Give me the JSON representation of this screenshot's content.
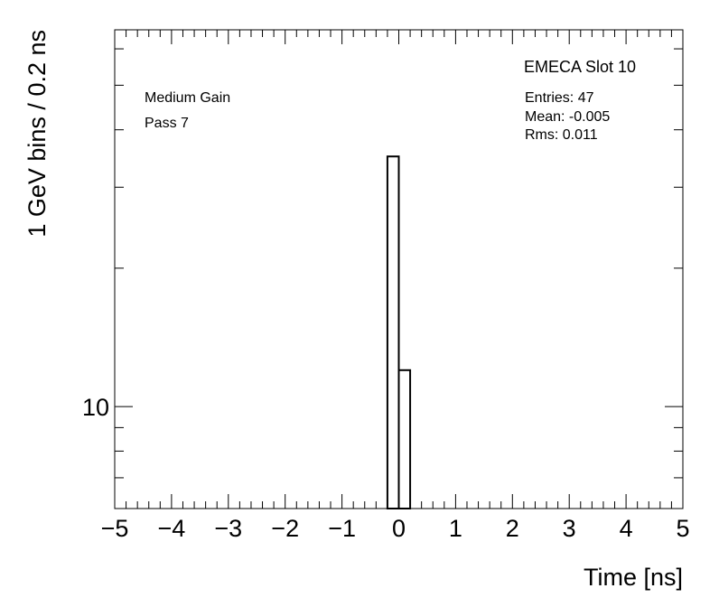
{
  "chart_data": {
    "type": "histogram",
    "title": "EMECA Slot 10",
    "annotations": [
      "Medium Gain",
      "Pass 7"
    ],
    "stats": [
      "Entries: 47",
      "Mean: -0.005",
      "Rms: 0.011"
    ],
    "xlabel": "Time [ns]",
    "ylabel": "1 GeV bins / 0.2 ns",
    "bins": [
      -5,
      -4.8,
      -4.6,
      -4.4,
      -4.2,
      -4,
      -3.8,
      -3.6,
      -3.4,
      -3.2,
      -3,
      -2.8,
      -2.6,
      -2.4,
      -2.2,
      -2,
      -1.8,
      -1.6,
      -1.4,
      -1.2,
      -1,
      -0.8,
      -0.6,
      -0.4,
      -0.2,
      0,
      0.2,
      0.4,
      0.6,
      0.8,
      1,
      1.2,
      1.4,
      1.6,
      1.8,
      2,
      2.2,
      2.4,
      2.6,
      2.8,
      3,
      3.2,
      3.4,
      3.6,
      3.8,
      4,
      4.2,
      4.4,
      4.6,
      4.8,
      5
    ],
    "values": [
      0,
      0,
      0,
      0,
      0,
      0,
      0,
      0,
      0,
      0,
      0,
      0,
      0,
      0,
      0,
      0,
      0,
      0,
      0,
      0,
      0,
      0,
      0,
      0,
      35,
      12,
      0,
      0,
      0,
      0,
      0,
      0,
      0,
      0,
      0,
      0,
      0,
      0,
      0,
      0,
      0,
      0,
      0,
      0,
      0,
      0,
      0,
      0,
      0,
      0
    ],
    "color": "#000000",
    "xlim": [
      -5,
      5
    ],
    "xticks": [
      {
        "value": -5,
        "label": "−5"
      },
      {
        "value": -4,
        "label": "−4"
      },
      {
        "value": -3,
        "label": "−3"
      },
      {
        "value": -2,
        "label": "−2"
      },
      {
        "value": -1,
        "label": "−1"
      },
      0,
      1,
      2,
      3,
      4,
      5
    ],
    "xminorticks": [
      -4.8,
      -4.6,
      -4.4,
      -4.2,
      -3.8,
      -3.6,
      -3.4,
      -3.2,
      -2.8,
      -2.6,
      -2.4,
      -2.2,
      -1.8,
      -1.6,
      -1.4,
      -1.2,
      -0.8,
      -0.6,
      -0.4,
      -0.2,
      0.2,
      0.4,
      0.6,
      0.8,
      1.2,
      1.4,
      1.6,
      1.8,
      2.2,
      2.4,
      2.6,
      2.8,
      3.2,
      3.4,
      3.6,
      3.8,
      4.2,
      4.4,
      4.6,
      4.8
    ],
    "ylim": [
      6,
      66
    ],
    "ylog": true,
    "yticks": [
      10
    ],
    "yminorticks": [
      7,
      8,
      9,
      20,
      30,
      40,
      50,
      60
    ]
  }
}
